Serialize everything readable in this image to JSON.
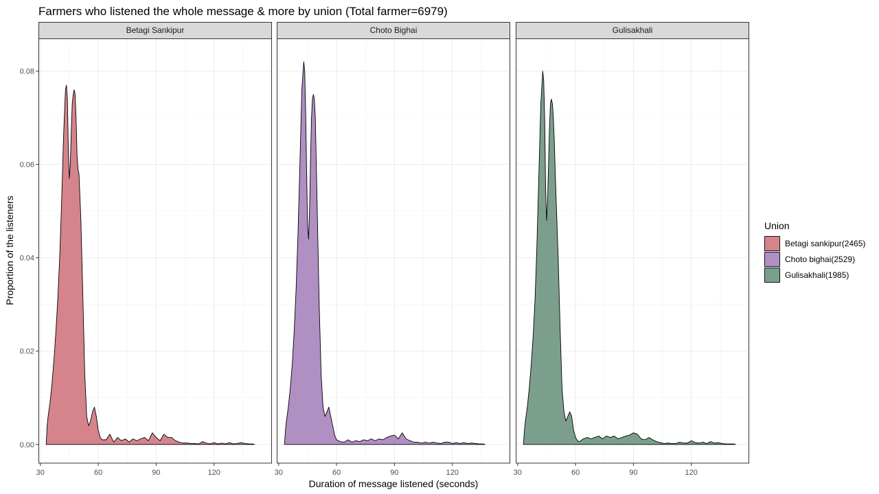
{
  "chart_data": {
    "type": "area",
    "subtype": "density (faceted)",
    "title": "Farmers who listened the whole message & more by union (Total farmer=6979)",
    "xlabel": "Duration of message listened (seconds)",
    "ylabel": "Proportion of the listeners",
    "xlim": [
      29,
      150
    ],
    "ylim": [
      -0.004,
      0.087
    ],
    "x_ticks": [
      30,
      60,
      90,
      120
    ],
    "x_tick_labels": [
      "30",
      "60",
      "90",
      "120"
    ],
    "y_ticks": [
      0,
      0.02,
      0.04,
      0.06,
      0.08
    ],
    "y_tick_labels": [
      "0.00",
      "0.02",
      "0.04",
      "0.06",
      "0.08"
    ],
    "grid": true,
    "legend": {
      "title": "Union",
      "position": "right",
      "entries": [
        "Betagi sankipur(2465)",
        "Choto bighai(2529)",
        "Gulisakhali(1985)"
      ]
    },
    "facets": [
      {
        "label": "Betagi Sankipur",
        "color": "#d5848b",
        "x": [
          33,
          33.5,
          34,
          35,
          36,
          37,
          38,
          39,
          40,
          41,
          42,
          43,
          43.5,
          44,
          44.5,
          45,
          45.5,
          46,
          46.5,
          47,
          47.5,
          48,
          48.5,
          49,
          49.5,
          50,
          51,
          52,
          53,
          54,
          55,
          56,
          57,
          58,
          59,
          60,
          61,
          62,
          64,
          66,
          68,
          70,
          72,
          74,
          76,
          78,
          80,
          82,
          84,
          86,
          88,
          90,
          92,
          94,
          96,
          98,
          100,
          102,
          104,
          106,
          108,
          110,
          112,
          114,
          116,
          118,
          120,
          122,
          124,
          126,
          128,
          130,
          132,
          134,
          136,
          138,
          140,
          141
        ],
        "y": [
          0,
          0.004,
          0.006,
          0.009,
          0.013,
          0.018,
          0.024,
          0.031,
          0.04,
          0.052,
          0.066,
          0.076,
          0.077,
          0.074,
          0.063,
          0.057,
          0.06,
          0.067,
          0.073,
          0.075,
          0.076,
          0.075,
          0.07,
          0.062,
          0.059,
          0.058,
          0.048,
          0.032,
          0.015,
          0.006,
          0.004,
          0.005,
          0.007,
          0.008,
          0.006,
          0.003,
          0.0015,
          0.001,
          0.001,
          0.0022,
          0.0005,
          0.0015,
          0.0008,
          0.0012,
          0.0005,
          0.0012,
          0.0008,
          0.0012,
          0.0015,
          0.0008,
          0.0025,
          0.0015,
          0.0008,
          0.0022,
          0.0015,
          0.0015,
          0.0008,
          0.0005,
          0.0003,
          0.0003,
          0.0002,
          0.0002,
          0.0001,
          0.0006,
          0.0003,
          0.0001,
          0.0004,
          0.0001,
          0.0003,
          0.0001,
          0.0004,
          0.0001,
          0.0002,
          0.0004,
          0.0002,
          0.0001,
          0.0001,
          0
        ]
      },
      {
        "label": "Choto Bighai",
        "color": "#b08fc3",
        "x": [
          33,
          33.5,
          34,
          35,
          36,
          37,
          38,
          39,
          40,
          41,
          42,
          43,
          43.5,
          44,
          44.5,
          45,
          45.5,
          46,
          46.5,
          47,
          47.5,
          48,
          48.5,
          49,
          49.5,
          50,
          51,
          52,
          53,
          54,
          55,
          56,
          57,
          58,
          59,
          60,
          61,
          62,
          64,
          66,
          68,
          70,
          72,
          74,
          76,
          78,
          80,
          82,
          84,
          86,
          88,
          90,
          92,
          94,
          96,
          98,
          100,
          102,
          104,
          106,
          108,
          110,
          112,
          114,
          116,
          118,
          120,
          122,
          124,
          126,
          128,
          130,
          132,
          134,
          136,
          137
        ],
        "y": [
          0,
          0.003,
          0.005,
          0.008,
          0.012,
          0.017,
          0.024,
          0.033,
          0.045,
          0.06,
          0.076,
          0.082,
          0.08,
          0.071,
          0.058,
          0.047,
          0.044,
          0.05,
          0.061,
          0.07,
          0.074,
          0.075,
          0.074,
          0.07,
          0.06,
          0.05,
          0.03,
          0.015,
          0.008,
          0.006,
          0.007,
          0.008,
          0.006,
          0.004,
          0.002,
          0.001,
          0.0008,
          0.0006,
          0.0005,
          0.001,
          0.0005,
          0.0008,
          0.0006,
          0.001,
          0.0008,
          0.0012,
          0.0008,
          0.0012,
          0.001,
          0.0015,
          0.0018,
          0.002,
          0.0012,
          0.0025,
          0.0012,
          0.0008,
          0.0005,
          0.0005,
          0.0003,
          0.0005,
          0.0003,
          0.0005,
          0.0003,
          0.0002,
          0.0005,
          0.0005,
          0.0002,
          0.0004,
          0.0002,
          0.0004,
          0.0002,
          0.0003,
          0.0002,
          0.0001,
          0.0001,
          0
        ]
      },
      {
        "label": "Gulisakhali",
        "color": "#7b9f8c",
        "x": [
          33,
          33.5,
          34,
          35,
          36,
          37,
          38,
          39,
          40,
          41,
          42,
          43,
          43.5,
          44,
          44.5,
          45,
          45.5,
          46,
          46.5,
          47,
          47.5,
          48,
          48.5,
          49,
          49.5,
          50,
          51,
          52,
          53,
          54,
          55,
          56,
          57,
          58,
          59,
          60,
          61,
          62,
          64,
          66,
          68,
          70,
          72,
          74,
          76,
          78,
          80,
          82,
          84,
          86,
          88,
          90,
          92,
          94,
          96,
          98,
          100,
          102,
          104,
          106,
          108,
          110,
          112,
          114,
          116,
          118,
          120,
          122,
          124,
          126,
          128,
          130,
          132,
          134,
          136,
          138,
          140,
          142,
          143
        ],
        "y": [
          0,
          0.003,
          0.005,
          0.008,
          0.012,
          0.017,
          0.023,
          0.031,
          0.043,
          0.058,
          0.073,
          0.08,
          0.078,
          0.07,
          0.055,
          0.048,
          0.052,
          0.06,
          0.068,
          0.073,
          0.074,
          0.073,
          0.07,
          0.065,
          0.058,
          0.052,
          0.04,
          0.025,
          0.012,
          0.007,
          0.005,
          0.006,
          0.007,
          0.006,
          0.003,
          0.0015,
          0.0008,
          0.0006,
          0.0012,
          0.0015,
          0.0012,
          0.0015,
          0.0018,
          0.0012,
          0.0018,
          0.0015,
          0.0018,
          0.0012,
          0.0015,
          0.0018,
          0.002,
          0.0025,
          0.0022,
          0.0012,
          0.001,
          0.0015,
          0.001,
          0.0006,
          0.0004,
          0.0002,
          0.0003,
          0.0002,
          0.0002,
          0.0005,
          0.0003,
          0.0003,
          0.0008,
          0.0004,
          0.0003,
          0.0005,
          0.0002,
          0.0006,
          0.0003,
          0.0004,
          0.0002,
          0.0001,
          0.0001,
          0.0001,
          0
        ]
      }
    ]
  }
}
